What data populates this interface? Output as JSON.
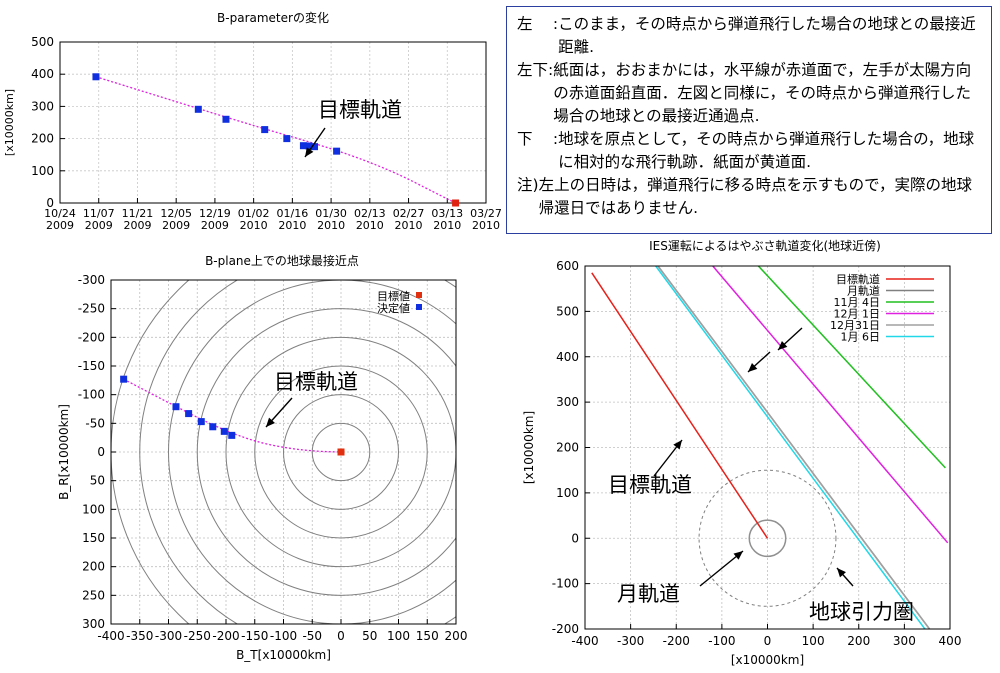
{
  "notes": [
    {
      "key": "左　 :",
      "text": "このまま，その時点から弾道飛行した場合の地球との最接近距離."
    },
    {
      "key": "左下:",
      "text": "紙面は，おおまかには，水平線が赤道面で，左手が太陽方向の赤道面鉛直面．左図と同様に，その時点から弾道飛行した場合の地球との最接近通過点."
    },
    {
      "key": "下　 :",
      "text": "地球を原点として，その時点から弾道飛行した場合の，地球に相対的な飛行軌跡．紙面が黄道面."
    },
    {
      "key": "注)",
      "text": "左上の日時は，弾道飛行に移る時点を示すもので，実際の地球帰還日ではありません."
    }
  ],
  "chart_data": [
    {
      "id": "b-parameter",
      "type": "scatter",
      "title": "B-parameterの変化",
      "ylabel": "[x10000km]",
      "ylim": [
        0,
        500
      ],
      "yticks": [
        0,
        100,
        200,
        300,
        400,
        500
      ],
      "x_tick_labels": [
        [
          "10/24",
          "2009"
        ],
        [
          "11/07",
          "2009"
        ],
        [
          "11/21",
          "2009"
        ],
        [
          "12/05",
          "2009"
        ],
        [
          "12/19",
          "2009"
        ],
        [
          "01/02",
          "2010"
        ],
        [
          "01/16",
          "2010"
        ],
        [
          "01/30",
          "2010"
        ],
        [
          "02/13",
          "2010"
        ],
        [
          "02/27",
          "2010"
        ],
        [
          "03/13",
          "2010"
        ],
        [
          "03/27",
          "2010"
        ]
      ],
      "grid": true,
      "annotation": "目標軌道",
      "series": [
        {
          "values": [
            [
              13,
              392
            ],
            [
              50,
              291
            ],
            [
              60,
              260
            ],
            [
              74,
              228
            ],
            [
              82,
              200
            ],
            [
              88,
              178
            ],
            [
              90,
              177
            ],
            [
              92,
              175
            ],
            [
              100,
              161
            ]
          ],
          "color": "#1030e0"
        },
        {
          "values": [
            [
              143,
              0
            ]
          ],
          "color": "#e02010"
        }
      ],
      "target_curve": [
        [
          13,
          392
        ],
        [
          40,
          320
        ],
        [
          70,
          240
        ],
        [
          100,
          165
        ],
        [
          120,
          100
        ],
        [
          136,
          30
        ],
        [
          143,
          0
        ]
      ]
    },
    {
      "id": "b-plane",
      "type": "scatter",
      "title": "B-plane上での地球最接近点",
      "xlabel": "B_T[x10000km]",
      "ylabel": "B_R[x10000km]",
      "xlim": [
        -400,
        200
      ],
      "ylim": [
        300,
        -300
      ],
      "xticks": [
        -400,
        -350,
        -300,
        -250,
        -200,
        -150,
        -100,
        -50,
        0,
        50,
        100,
        150,
        200
      ],
      "yticks": [
        -300,
        -250,
        -200,
        -150,
        -100,
        -50,
        0,
        50,
        100,
        150,
        200,
        250,
        300
      ],
      "grid": true,
      "legend": [
        {
          "label": "目標値",
          "color": "#e03010"
        },
        {
          "label": "決定値",
          "color": "#1030e0"
        }
      ],
      "legend_position": "top-right",
      "annotation": "目標軌道",
      "series": [
        {
          "name": "決定値",
          "values": [
            [
              -378,
              -127
            ],
            [
              -287,
              -79
            ],
            [
              -265,
              -67
            ],
            [
              -243,
              -53
            ],
            [
              -223,
              -44
            ],
            [
              -203,
              -36
            ],
            [
              -190,
              -29
            ]
          ],
          "color": "#1030e0"
        },
        {
          "name": "目標値",
          "values": [
            [
              0,
              0
            ]
          ],
          "color": "#e03010"
        }
      ],
      "target_curve": [
        [
          -378,
          -127
        ],
        [
          -300,
          -86
        ],
        [
          -220,
          -45
        ],
        [
          -150,
          -18
        ],
        [
          -90,
          -6
        ],
        [
          -40,
          -1
        ],
        [
          0,
          0
        ]
      ],
      "circles_radii": [
        50,
        100,
        150,
        200,
        250,
        300,
        350,
        400
      ]
    },
    {
      "id": "ies-trajectory",
      "type": "line",
      "title": "IES運転によるはやぶさ軌道変化(地球近傍)",
      "xlabel": "[x10000km]",
      "ylabel": "[x10000km]",
      "xlim": [
        -400,
        400
      ],
      "ylim": [
        -200,
        600
      ],
      "xticks": [
        -400,
        -300,
        -200,
        -100,
        0,
        100,
        200,
        300,
        400
      ],
      "yticks": [
        -200,
        -100,
        0,
        100,
        200,
        300,
        400,
        500,
        600
      ],
      "grid": true,
      "legend_position": "top-right",
      "series": [
        {
          "name": "目標軌道",
          "color": "#e8201a",
          "values": [
            [
              -385,
              585
            ],
            [
              0,
              0
            ]
          ]
        },
        {
          "name": "月軌道",
          "color": "#808080",
          "values": [
            [
              -240,
              600
            ],
            [
              355,
              -200
            ]
          ]
        },
        {
          "name": "11月 4日",
          "color": "#20c020",
          "values": [
            [
              -20,
              600
            ],
            [
              390,
              155
            ]
          ]
        },
        {
          "name": "12月 1日",
          "color": "#e020e0",
          "values": [
            [
              -120,
              600
            ],
            [
              395,
              -10
            ]
          ]
        },
        {
          "name": "12月31日",
          "color": "#a0a0a0",
          "values": [
            [
              -240,
              600
            ],
            [
              355,
              -200
            ]
          ]
        },
        {
          "name": "1月 6日",
          "color": "#20d8e8",
          "values": [
            [
              -245,
              600
            ],
            [
              345,
              -200
            ]
          ]
        }
      ],
      "annotations": [
        "目標軌道",
        "月軌道",
        "地球引力圏"
      ],
      "moon_orbit_radius": 40,
      "sphere_radius": 150
    }
  ]
}
